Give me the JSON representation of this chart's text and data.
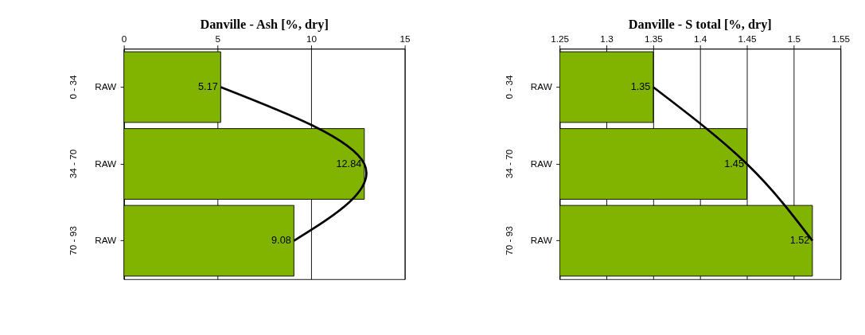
{
  "chart_data": [
    {
      "type": "bar",
      "orientation": "horizontal",
      "title": "Danville - Ash [%, dry]",
      "categories": [
        "RAW",
        "RAW",
        "RAW"
      ],
      "annotations": [
        "0 - 34",
        "34 - 70",
        "70 - 93"
      ],
      "xlim": [
        0,
        15
      ],
      "xticks": [
        0,
        5,
        10,
        15
      ],
      "grid": "x",
      "series": [
        {
          "color": "#80b400",
          "values": [
            5.17,
            12.84,
            9.08
          ],
          "value_labels": [
            "5.17",
            "12.84",
            "9.08"
          ]
        },
        {
          "type": "line",
          "color": "#000000",
          "values": [
            5.17,
            12.84,
            9.08
          ]
        }
      ]
    },
    {
      "type": "bar",
      "orientation": "horizontal",
      "title": "Danville - S total [%, dry]",
      "categories": [
        "RAW",
        "RAW",
        "RAW"
      ],
      "annotations": [
        "0 - 34",
        "34 - 70",
        "70 - 93"
      ],
      "xlim": [
        1.25,
        1.55
      ],
      "xticks": [
        1.25,
        1.3,
        1.35,
        1.4,
        1.45,
        1.5,
        1.55
      ],
      "grid": "x",
      "series": [
        {
          "color": "#80b400",
          "values": [
            1.35,
            1.45,
            1.52
          ],
          "value_labels": [
            "1.35",
            "1.45",
            "1.52"
          ]
        },
        {
          "type": "line",
          "color": "#000000",
          "values": [
            1.35,
            1.45,
            1.52
          ]
        }
      ]
    }
  ]
}
